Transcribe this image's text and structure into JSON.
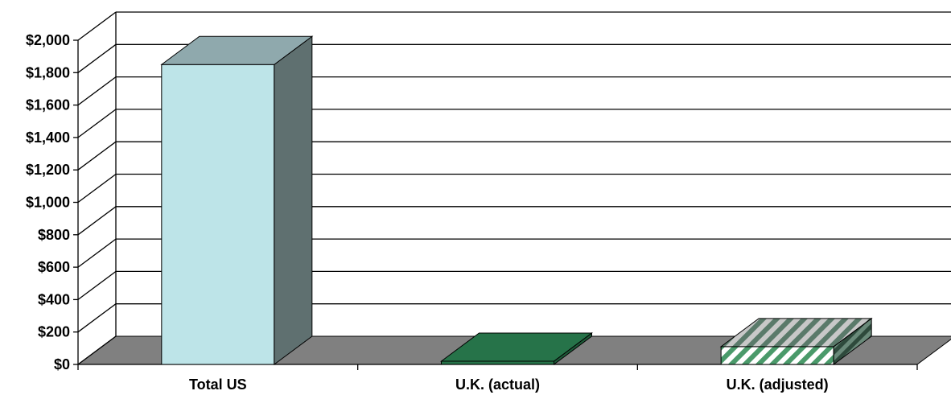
{
  "chart_data": {
    "type": "bar",
    "title": "",
    "xlabel": "",
    "ylabel": "",
    "categories": [
      "Total US",
      "U.K. (actual)",
      "U.K. (adjusted)"
    ],
    "values": [
      1850,
      20,
      110
    ],
    "ylim": [
      0,
      2000
    ],
    "yticks": [
      "$0",
      "$200",
      "$400",
      "$600",
      "$800",
      "$1,000",
      "$1,200",
      "$1,400",
      "$1,600",
      "$1,800",
      "$2,000"
    ],
    "grid": true,
    "legend": "none",
    "colors": {
      "floor": "#808080",
      "gridline": "#000000",
      "bar1_front": "#bde4e8",
      "bar1_top": "#8fa9ad",
      "bar1_side": "#5f7070",
      "bar2_front": "#267349",
      "bar2_top": "#267349",
      "bar2_side": "#1d5a38",
      "bar3_stripe": "#4a9a6a",
      "bar3_side": "#3c5a4a"
    }
  }
}
